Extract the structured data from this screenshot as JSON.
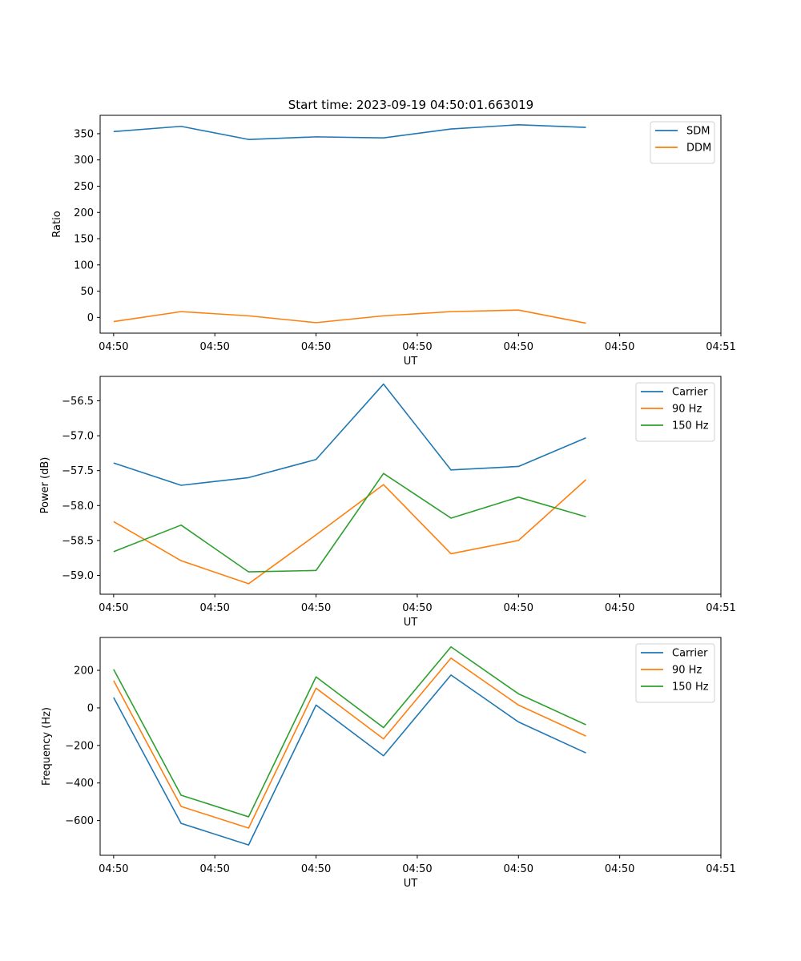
{
  "figure": {
    "title": "Start time: 2023-09-19 04:50:01.663019"
  },
  "chart_data": [
    {
      "type": "line",
      "title": "Start time: 2023-09-19 04:50:01.663019",
      "xlabel": "UT",
      "ylabel": "Ratio",
      "x": [
        1,
        2,
        3,
        4,
        5,
        6,
        7,
        8
      ],
      "xlim": [
        0.8,
        10.0
      ],
      "x_ticks": [
        1,
        2.5,
        4,
        5.5,
        7,
        8.5,
        10
      ],
      "x_tick_labels": [
        "04:50",
        "04:50",
        "04:50",
        "04:50",
        "04:50",
        "04:50",
        "04:51"
      ],
      "ylim": [
        -30,
        385
      ],
      "y_ticks": [
        0,
        50,
        100,
        150,
        200,
        250,
        300,
        350
      ],
      "y_tick_labels": [
        "0",
        "50",
        "100",
        "150",
        "200",
        "250",
        "300",
        "350"
      ],
      "legend": "top-right",
      "series": [
        {
          "name": "SDM",
          "color": "#1f77b4",
          "values": [
            354,
            364,
            339,
            344,
            342,
            359,
            367,
            362
          ]
        },
        {
          "name": "DDM",
          "color": "#ff7f0e",
          "values": [
            -8,
            11,
            3,
            -10,
            3,
            11,
            14,
            -11
          ]
        }
      ]
    },
    {
      "type": "line",
      "title": "",
      "xlabel": "UT",
      "ylabel": "Power (dB)",
      "x": [
        1,
        2,
        3,
        4,
        5,
        6,
        7,
        8
      ],
      "xlim": [
        0.8,
        10.0
      ],
      "x_ticks": [
        1,
        2.5,
        4,
        5.5,
        7,
        8.5,
        10
      ],
      "x_tick_labels": [
        "04:50",
        "04:50",
        "04:50",
        "04:50",
        "04:50",
        "04:50",
        "04:51"
      ],
      "ylim": [
        -59.27,
        -56.15
      ],
      "y_ticks": [
        -59.0,
        -58.5,
        -58.0,
        -57.5,
        -57.0,
        -56.5
      ],
      "y_tick_labels": [
        "−59.0",
        "−58.5",
        "−58.0",
        "−57.5",
        "−57.0",
        "−56.5"
      ],
      "legend": "top-right",
      "series": [
        {
          "name": "Carrier",
          "color": "#1f77b4",
          "values": [
            -57.39,
            -57.71,
            -57.6,
            -57.34,
            -56.26,
            -57.49,
            -57.44,
            -57.03
          ]
        },
        {
          "name": "90 Hz",
          "color": "#ff7f0e",
          "values": [
            -58.23,
            -58.79,
            -59.12,
            -58.42,
            -57.7,
            -58.69,
            -58.5,
            -57.63
          ]
        },
        {
          "name": "150 Hz",
          "color": "#2ca02c",
          "values": [
            -58.66,
            -58.28,
            -58.95,
            -58.93,
            -57.54,
            -58.18,
            -57.88,
            -58.16
          ]
        }
      ]
    },
    {
      "type": "line",
      "title": "",
      "xlabel": "UT",
      "ylabel": "Frequency (Hz)",
      "x": [
        1,
        2,
        3,
        4,
        5,
        6,
        7,
        8
      ],
      "xlim": [
        0.8,
        10.0
      ],
      "x_ticks": [
        1,
        2.5,
        4,
        5.5,
        7,
        8.5,
        10
      ],
      "x_tick_labels": [
        "04:50",
        "04:50",
        "04:50",
        "04:50",
        "04:50",
        "04:50",
        "04:51"
      ],
      "ylim": [
        -785,
        375
      ],
      "y_ticks": [
        -600,
        -400,
        -200,
        0,
        200
      ],
      "y_tick_labels": [
        "−600",
        "−400",
        "−200",
        "0",
        "200"
      ],
      "legend": "top-right",
      "series": [
        {
          "name": "Carrier",
          "color": "#1f77b4",
          "values": [
            55,
            -615,
            -730,
            15,
            -255,
            175,
            -75,
            -240
          ]
        },
        {
          "name": "90 Hz",
          "color": "#ff7f0e",
          "values": [
            145,
            -525,
            -640,
            105,
            -165,
            265,
            15,
            -150
          ]
        },
        {
          "name": "150 Hz",
          "color": "#2ca02c",
          "values": [
            205,
            -465,
            -580,
            165,
            -105,
            325,
            75,
            -90
          ]
        }
      ]
    }
  ]
}
